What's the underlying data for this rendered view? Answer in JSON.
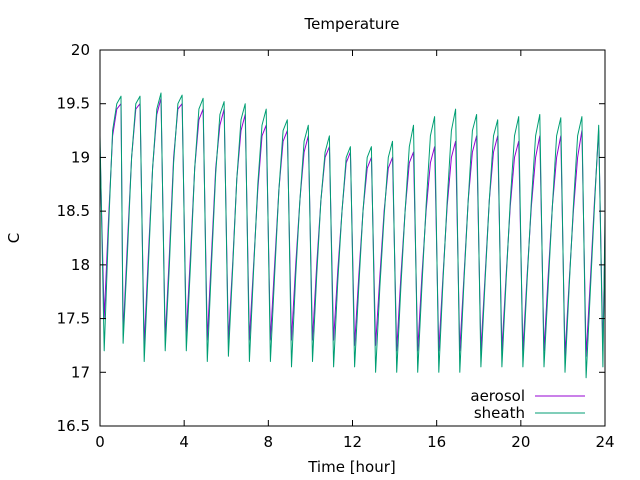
{
  "chart_data": {
    "type": "line",
    "title": "Temperature",
    "xlabel": "Time [hour]",
    "ylabel": "C",
    "xlim": [
      0,
      24
    ],
    "ylim": [
      16.5,
      20
    ],
    "x_ticks": [
      "0",
      "4",
      "8",
      "12",
      "16",
      "20",
      "24"
    ],
    "y_ticks": [
      "16.5",
      "17",
      "17.5",
      "18",
      "18.5",
      "19",
      "19.5",
      "20"
    ],
    "grid": false,
    "legend_position": "bottom-right",
    "series": [
      {
        "name": "aerosol",
        "color": "#9400d3",
        "x": [
          0.0,
          0.2,
          0.4,
          0.6,
          0.8,
          1.0,
          1.1,
          1.3,
          1.5,
          1.7,
          1.9,
          2.1,
          2.3,
          2.5,
          2.7,
          2.9,
          3.1,
          3.3,
          3.5,
          3.7,
          3.9,
          4.1,
          4.3,
          4.5,
          4.7,
          4.9,
          5.1,
          5.3,
          5.5,
          5.7,
          5.9,
          6.1,
          6.3,
          6.5,
          6.7,
          6.9,
          7.1,
          7.3,
          7.5,
          7.7,
          7.9,
          8.1,
          8.3,
          8.5,
          8.7,
          8.9,
          9.1,
          9.3,
          9.5,
          9.7,
          9.9,
          10.1,
          10.3,
          10.5,
          10.7,
          10.9,
          11.1,
          11.3,
          11.5,
          11.7,
          11.9,
          12.1,
          12.3,
          12.5,
          12.7,
          12.9,
          13.1,
          13.3,
          13.5,
          13.7,
          13.9,
          14.1,
          14.3,
          14.5,
          14.7,
          14.9,
          15.1,
          15.3,
          15.5,
          15.7,
          15.9,
          16.1,
          16.3,
          16.5,
          16.7,
          16.9,
          17.1,
          17.3,
          17.5,
          17.7,
          17.9,
          18.1,
          18.3,
          18.5,
          18.7,
          18.9,
          19.1,
          19.3,
          19.5,
          19.7,
          19.9,
          20.1,
          20.3,
          20.5,
          20.7,
          20.9,
          21.1,
          21.3,
          21.5,
          21.7,
          21.9,
          22.1,
          22.3,
          22.5,
          22.7,
          22.9,
          23.1,
          23.3,
          23.5,
          23.7,
          23.9,
          24.0
        ],
        "y": [
          19.1,
          17.5,
          18.4,
          19.2,
          19.45,
          19.5,
          17.35,
          18.2,
          19.0,
          19.45,
          19.5,
          17.25,
          18.1,
          18.9,
          19.4,
          19.55,
          17.3,
          18.1,
          19.0,
          19.45,
          19.5,
          17.35,
          18.1,
          18.9,
          19.35,
          19.45,
          17.3,
          18.1,
          18.9,
          19.3,
          19.45,
          17.3,
          18.0,
          18.8,
          19.25,
          19.4,
          17.3,
          18.0,
          18.7,
          19.2,
          19.3,
          17.3,
          18.0,
          18.7,
          19.15,
          19.25,
          17.3,
          18.0,
          18.6,
          19.05,
          19.2,
          17.3,
          18.0,
          18.6,
          19.0,
          19.1,
          17.3,
          17.95,
          18.5,
          18.95,
          19.05,
          17.25,
          17.9,
          18.5,
          18.9,
          19.0,
          17.25,
          17.9,
          18.5,
          18.9,
          19.0,
          17.2,
          17.9,
          18.5,
          18.95,
          19.05,
          17.2,
          17.9,
          18.5,
          18.95,
          19.1,
          17.2,
          17.9,
          18.55,
          19.0,
          19.15,
          17.2,
          17.9,
          18.6,
          19.05,
          19.2,
          17.2,
          17.9,
          18.6,
          19.05,
          19.2,
          17.2,
          17.9,
          18.55,
          19.0,
          19.15,
          17.2,
          17.9,
          18.55,
          19.0,
          19.2,
          17.2,
          17.9,
          18.55,
          19.0,
          19.2,
          17.15,
          17.85,
          18.5,
          19.0,
          19.25,
          17.15,
          17.85,
          18.6,
          19.25,
          17.2,
          18.3
        ]
      },
      {
        "name": "sheath",
        "color": "#009e73",
        "x": [
          0.0,
          0.2,
          0.4,
          0.6,
          0.8,
          1.0,
          1.1,
          1.3,
          1.5,
          1.7,
          1.9,
          2.1,
          2.3,
          2.5,
          2.7,
          2.9,
          3.1,
          3.3,
          3.5,
          3.7,
          3.9,
          4.1,
          4.3,
          4.5,
          4.7,
          4.9,
          5.1,
          5.3,
          5.5,
          5.7,
          5.9,
          6.1,
          6.3,
          6.5,
          6.7,
          6.9,
          7.1,
          7.3,
          7.5,
          7.7,
          7.9,
          8.1,
          8.3,
          8.5,
          8.7,
          8.9,
          9.1,
          9.3,
          9.5,
          9.7,
          9.9,
          10.1,
          10.3,
          10.5,
          10.7,
          10.9,
          11.1,
          11.3,
          11.5,
          11.7,
          11.9,
          12.1,
          12.3,
          12.5,
          12.7,
          12.9,
          13.1,
          13.3,
          13.5,
          13.7,
          13.9,
          14.1,
          14.3,
          14.5,
          14.7,
          14.9,
          15.1,
          15.3,
          15.5,
          15.7,
          15.9,
          16.1,
          16.3,
          16.5,
          16.7,
          16.9,
          17.1,
          17.3,
          17.5,
          17.7,
          17.9,
          18.1,
          18.3,
          18.5,
          18.7,
          18.9,
          19.1,
          19.3,
          19.5,
          19.7,
          19.9,
          20.1,
          20.3,
          20.5,
          20.7,
          20.9,
          21.1,
          21.3,
          21.5,
          21.7,
          21.9,
          22.1,
          22.3,
          22.5,
          22.7,
          22.9,
          23.1,
          23.3,
          23.5,
          23.7,
          23.9,
          24.0
        ],
        "y": [
          19.2,
          17.2,
          18.3,
          19.25,
          19.5,
          19.57,
          17.27,
          18.1,
          19.0,
          19.5,
          19.57,
          17.1,
          18.0,
          18.9,
          19.45,
          19.6,
          17.2,
          18.0,
          18.95,
          19.5,
          19.58,
          17.2,
          18.0,
          18.9,
          19.45,
          19.55,
          17.1,
          18.0,
          18.85,
          19.4,
          19.52,
          17.15,
          17.95,
          18.8,
          19.35,
          19.5,
          17.1,
          17.95,
          18.75,
          19.3,
          19.45,
          17.1,
          17.9,
          18.7,
          19.25,
          19.35,
          17.05,
          17.9,
          18.6,
          19.15,
          19.3,
          17.1,
          17.9,
          18.6,
          19.05,
          19.2,
          17.05,
          17.85,
          18.5,
          19.0,
          19.1,
          17.05,
          17.8,
          18.5,
          19.0,
          19.1,
          17.0,
          17.8,
          18.45,
          19.0,
          19.15,
          17.0,
          17.8,
          18.5,
          19.1,
          19.3,
          17.0,
          17.8,
          18.55,
          19.2,
          19.38,
          17.0,
          17.85,
          18.6,
          19.25,
          19.45,
          17.0,
          17.85,
          18.6,
          19.25,
          19.4,
          17.05,
          17.85,
          18.6,
          19.2,
          19.35,
          17.05,
          17.85,
          18.6,
          19.2,
          19.38,
          17.05,
          17.85,
          18.6,
          19.2,
          19.4,
          17.05,
          17.8,
          18.55,
          19.2,
          19.37,
          17.0,
          17.8,
          18.55,
          19.2,
          19.38,
          16.95,
          17.75,
          18.55,
          19.3,
          17.05,
          18.45
        ]
      }
    ]
  }
}
